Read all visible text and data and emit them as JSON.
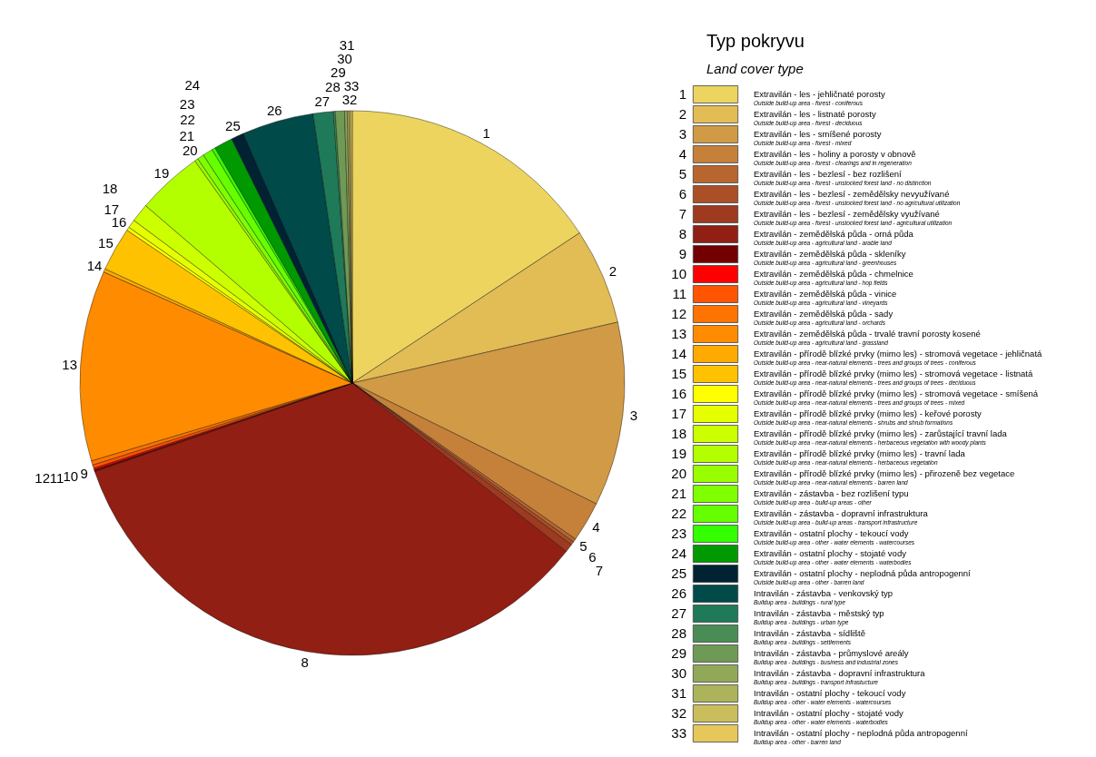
{
  "chart_data": {
    "type": "pie",
    "legend_title": "Typ pokryvu",
    "subtitle": "Land cover type",
    "legend": "right",
    "categories": [
      "1",
      "2",
      "3",
      "4",
      "5",
      "6",
      "7",
      "8",
      "9",
      "10",
      "11",
      "12",
      "13",
      "14",
      "15",
      "16",
      "17",
      "18",
      "19",
      "20",
      "21",
      "22",
      "23",
      "24",
      "25",
      "26",
      "27",
      "28",
      "29",
      "30",
      "31",
      "32",
      "33"
    ],
    "annotations": [
      "Extravilán - les - jehličnaté porosty\nOutside build-up area - forest - coniferous",
      "Extravilán - les - listnaté porosty\nOutside build-up area - forest - deciduous",
      "Extravilán - les - smíšené porosty\nOutside build-up area - forest - mixed",
      "Extravilán - les - holiny a porosty v obnově\nOutside build-up area - forest - clearings and in regeneration",
      "Extravilán - les - bezlesí - bez rozlišení\nOutside build-up area - forest - unstocked forest land - no distinction",
      "Extravilán - les - bezlesí - zemědělsky nevyužívané\nOutside build-up area - forest - unstocked forest land - no agricultural utilization",
      "Extravilán - les - bezlesí - zemědělsky využívané\nOutside build-up area - forest - unstocked forest land - agricultural utilization",
      "Extravilán - zemědělská půda - orná půda\nOutside build-up area - agricultural land - arable land",
      "Extravilán - zemědělská půda - skleníky\nOutside build-up area - agricultural land - greenhouses",
      "Extravilán - zemědělská půda - chmelnice\nOutside build-up area - agricultural land - hop fields",
      "Extravilán - zemědělská půda - vinice\nOutside build-up area - agricultural land - vineyards",
      "Extravilán - zemědělská půda - sady\nOutside build-up area - agricultural land - orchards",
      "Extravilán - zemědělská půda - trvalé travní porosty kosené\nOutside build-up area - agricultural land - grassland",
      "Extravilán - přírodě blízké prvky (mimo les) - stromová vegetace - jehličnatá\nOutside build-up area - near-natural elements - trees and groups of trees - coniferous",
      "Extravilán - přírodě blízké prvky (mimo les) - stromová vegetace - listnatá\nOutside build-up area - near-natural elements - trees and groups of trees - deciduous",
      "Extravilán - přírodě blízké prvky (mimo les) - stromová vegetace - smíšená\nOutside build-up area - near-natural elements - trees and groups of trees - mixed",
      "Extravilán - přírodě blízké prvky (mimo les) - keřové porosty\nOutside build-up area - near-natural elements - shrubs and shrub formations",
      "Extravilán - přírodě blízké prvky (mimo les) - zarůstající travní lada\nOutside build-up area - near-natural elements - herbaceous vegetation with woody plants",
      "Extravilán - přírodě blízké prvky (mimo les) - travní lada\nOutside build-up area - near-natural elements - herbaceous vegetation",
      "Extravilán - přírodě blízké prvky (mimo les) - přirozeně bez vegetace\nOutside build-up area - near-natural elements - barren land",
      "Extravilán - zástavba - bez rozlišení typu\nOutside build-up area - build-up areas - other",
      "Extravilán - zástavba - dopravní infrastruktura\nOutside build-up area - build-up areas - transport infrastructure",
      "Extravilán - ostatní plochy - tekoucí vody\nOutside build-up area - other - water elements - watercourses",
      "Extravilán - ostatní plochy - stojaté vody\nOutside build-up area - other - water elements - waterbodies",
      "Extravilán - ostatní plochy - neplodná půda antropogenní\nOutside build-up area - other - barren land",
      "Intravilán - zástavba - venkovský typ\nBuildup area - buildings - rural type",
      "Intravilán - zástavba - městský typ\nBuildup area - buildings - urban type",
      "Intravilán - zástavba - sídliště\nBuildup area - buildings - settlements",
      "Intravilán - zástavba - průmyslové areály\nBuildup area - buildings - business and industrial zones",
      "Intravilán - zástavba - dopravní infrastruktura\nBuildup area - buildings - transport infrastucture",
      "Intravilán - ostatní plochy - tekoucí vody\nBuildup area - other - water elements - watercourses",
      "Intravilán - ostatní plochy - stojaté vody\nBuildup area - other - water elements - waterbodies",
      "Intravilán - ostatní plochy - neplodná půda antropogenní\nBuildup area - other - barren land"
    ],
    "values": [
      15.7,
      5.7,
      10.9,
      2.4,
      0.2,
      0.2,
      0.5,
      34.1,
      0.1,
      0.1,
      0.2,
      0.25,
      11.3,
      0.2,
      2.6,
      0.2,
      0.5,
      1.1,
      3.9,
      0.2,
      0.4,
      0.6,
      0.2,
      1.1,
      0.75,
      4.25,
      1.2,
      0.1,
      0.55,
      0.15,
      0.1,
      0.1,
      0.1
    ],
    "colors": [
      "#ecd45f",
      "#e2bc55",
      "#d19a46",
      "#c5803a",
      "#b8662f",
      "#aa4f28",
      "#9e3a20",
      "#911f14",
      "#730000",
      "#ff0000",
      "#ff5500",
      "#ff7300",
      "#ff8c00",
      "#ffaa00",
      "#ffc200",
      "#ffff00",
      "#e6ff00",
      "#ccff00",
      "#b3ff00",
      "#99ff00",
      "#80ff00",
      "#66ff00",
      "#33ff00",
      "#009900",
      "#002233",
      "#004a4a",
      "#1e7a58",
      "#4a8c55",
      "#6e9a55",
      "#90a858",
      "#acb35a",
      "#c9bd5c",
      "#e6c85a"
    ]
  }
}
